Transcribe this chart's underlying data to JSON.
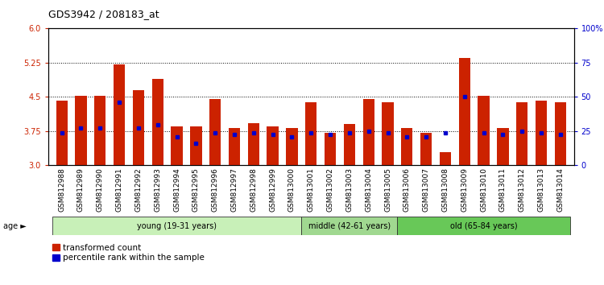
{
  "title": "GDS3942 / 208183_at",
  "samples": [
    "GSM812988",
    "GSM812989",
    "GSM812990",
    "GSM812991",
    "GSM812992",
    "GSM812993",
    "GSM812994",
    "GSM812995",
    "GSM812996",
    "GSM812997",
    "GSM812998",
    "GSM812999",
    "GSM813000",
    "GSM813001",
    "GSM813002",
    "GSM813003",
    "GSM813004",
    "GSM813005",
    "GSM813006",
    "GSM813007",
    "GSM813008",
    "GSM813009",
    "GSM813010",
    "GSM813011",
    "GSM813012",
    "GSM813013",
    "GSM813014"
  ],
  "bar_values": [
    4.42,
    4.52,
    4.52,
    5.21,
    4.65,
    4.9,
    3.85,
    3.85,
    4.45,
    3.82,
    3.92,
    3.85,
    3.82,
    4.38,
    3.72,
    3.9,
    4.45,
    4.38,
    3.82,
    3.72,
    3.28,
    5.35,
    4.52,
    3.82,
    4.38,
    4.42,
    4.38
  ],
  "percentile_values": [
    3.72,
    3.82,
    3.82,
    4.38,
    3.82,
    3.88,
    3.62,
    3.48,
    3.72,
    3.68,
    3.72,
    3.68,
    3.62,
    3.72,
    3.68,
    3.72,
    3.75,
    3.72,
    3.62,
    3.62,
    3.72,
    4.5,
    3.72,
    3.68,
    3.75,
    3.72,
    3.68
  ],
  "groups": [
    {
      "label": "young (19-31 years)",
      "start": 0,
      "end": 13,
      "color": "#c8f0b8"
    },
    {
      "label": "middle (42-61 years)",
      "start": 13,
      "end": 18,
      "color": "#a0d890"
    },
    {
      "label": "old (65-84 years)",
      "start": 18,
      "end": 27,
      "color": "#68c858"
    }
  ],
  "ylim_left": [
    3.0,
    6.0
  ],
  "ylim_right": [
    0,
    100
  ],
  "yticks_left": [
    3.0,
    3.75,
    4.5,
    5.25,
    6.0
  ],
  "yticks_right": [
    0,
    25,
    50,
    75,
    100
  ],
  "ytick_labels_right": [
    "0",
    "25",
    "50",
    "75",
    "100%"
  ],
  "bar_color": "#cc2200",
  "dot_color": "#0000cc",
  "bar_width": 0.6,
  "background_color": "#ffffff",
  "plot_bg_color": "#ffffff"
}
